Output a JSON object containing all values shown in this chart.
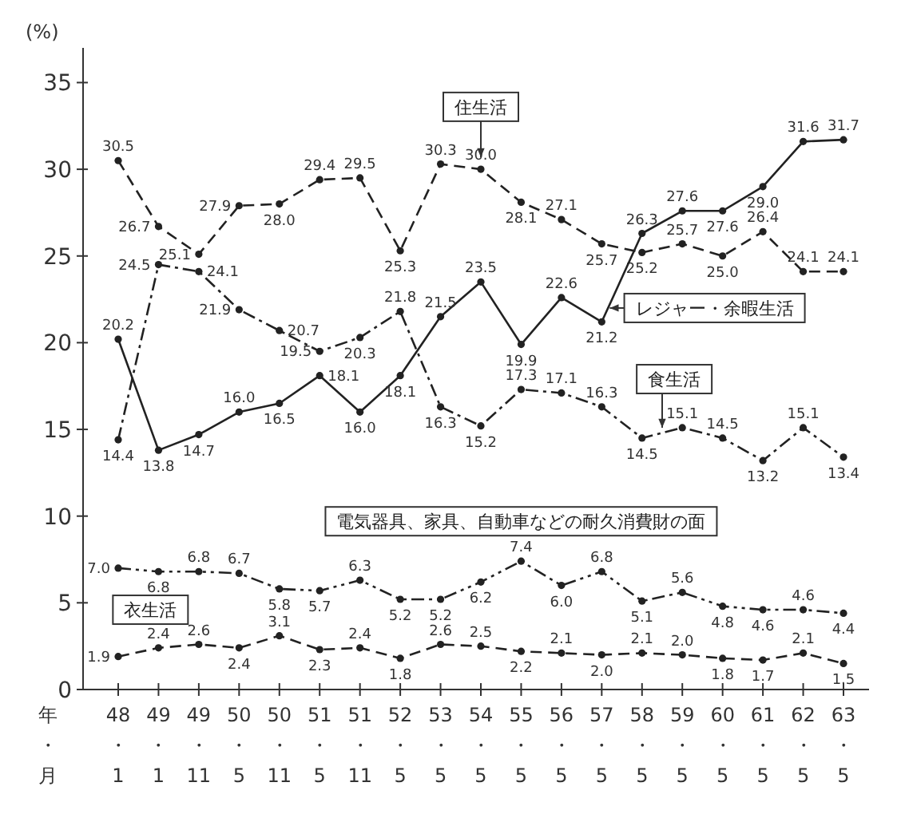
{
  "chart_data": {
    "type": "line",
    "ylabel": "(%)",
    "xlabel": "年・月",
    "categories": [
      "48\n・\n1",
      "49\n・\n1",
      "49\n・\n11",
      "50\n・\n5",
      "50\n・\n11",
      "51\n・\n5",
      "51\n・\n11",
      "52\n・\n5",
      "53\n・\n5",
      "54\n・\n5",
      "55\n・\n5",
      "56\n・\n5",
      "57\n・\n5",
      "58\n・\n5",
      "59\n・\n5",
      "60\n・\n5",
      "61\n・\n5",
      "62\n・\n5",
      "63\n・\n5"
    ],
    "ylim": [
      0,
      37
    ],
    "yticks": [
      0,
      5,
      10,
      15,
      20,
      25,
      30,
      35
    ],
    "grid": false,
    "marker": "circle",
    "series": [
      {
        "name": "住生活",
        "color": "#222222",
        "line_style": "dashed",
        "values": [
          30.5,
          26.7,
          25.1,
          27.9,
          28.0,
          29.4,
          29.5,
          25.3,
          30.3,
          30.0,
          28.1,
          27.1,
          25.7,
          25.2,
          25.7,
          25.0,
          26.4,
          24.1,
          24.1
        ],
        "value_labels": [
          "30.5",
          "26.7",
          "25.1",
          "27.9",
          "28.0",
          "29.4",
          "29.5",
          "25.3",
          "30.3",
          "30.0",
          "28.1",
          "27.1",
          "25.7",
          "25.2",
          "25.7",
          "25.0",
          "26.4",
          "24.1",
          "24.1"
        ]
      },
      {
        "name": "レジャー・余暇生活",
        "color": "#222222",
        "line_style": "solid",
        "values": [
          20.2,
          13.8,
          14.7,
          16.0,
          16.5,
          18.1,
          16.0,
          18.1,
          21.5,
          23.5,
          19.9,
          22.6,
          21.2,
          26.3,
          27.6,
          27.6,
          29.0,
          31.6,
          31.7
        ],
        "value_labels": [
          "20.2",
          "13.8",
          "14.7",
          "16.0",
          "16.5",
          "18.1",
          "16.0",
          "18.1",
          "21.5",
          "23.5",
          "19.9",
          "22.6",
          "21.2",
          "26.3",
          "27.6",
          "27.6",
          "29.0",
          "31.6",
          "31.7"
        ]
      },
      {
        "name": "食生活",
        "color": "#222222",
        "line_style": "dashdot",
        "values": [
          14.4,
          24.5,
          24.1,
          21.9,
          20.7,
          19.5,
          20.3,
          21.8,
          16.3,
          15.2,
          17.3,
          17.1,
          16.3,
          14.5,
          15.1,
          14.5,
          13.2,
          15.1,
          13.4
        ],
        "value_labels": [
          "14.4",
          "24.5",
          "24.1",
          "21.9",
          "20.7",
          "19.5",
          "20.3",
          "21.8",
          "16.3",
          "15.2",
          "17.3",
          "17.1",
          "16.3",
          "14.5",
          "15.1",
          "14.5",
          "13.2",
          "15.1",
          "13.4"
        ]
      },
      {
        "name": "電気器具、家具、自動車などの耐久消費財の面",
        "color": "#222222",
        "line_style": "dashdotdot",
        "values": [
          7.0,
          6.8,
          6.8,
          6.7,
          5.8,
          5.7,
          6.3,
          5.2,
          5.2,
          6.2,
          7.4,
          6.0,
          6.8,
          5.1,
          5.6,
          4.8,
          4.6,
          4.6,
          4.4
        ],
        "value_labels": [
          "7.0",
          "6.8",
          "6.8",
          "6.7",
          "5.8",
          "5.7",
          "6.3",
          "5.2",
          "5.2",
          "6.2",
          "7.4",
          "6.0",
          "6.8",
          "5.1",
          "5.6",
          "4.8",
          "4.6",
          "4.6",
          "4.4"
        ]
      },
      {
        "name": "衣生活",
        "color": "#222222",
        "line_style": "dashed",
        "values": [
          1.9,
          2.4,
          2.6,
          2.4,
          3.1,
          2.3,
          2.4,
          1.8,
          2.6,
          2.5,
          2.2,
          2.1,
          2.0,
          2.1,
          2.0,
          1.8,
          1.7,
          2.1,
          1.5
        ],
        "value_labels": [
          "1.9",
          "2.4",
          "2.6",
          "2.4",
          "3.1",
          "2.3",
          "2.4",
          "1.8",
          "2.6",
          "2.5",
          "2.2",
          "2.1",
          "2.0",
          "2.1",
          "2.0",
          "1.8",
          "1.7",
          "2.1",
          "1.5"
        ]
      }
    ]
  }
}
